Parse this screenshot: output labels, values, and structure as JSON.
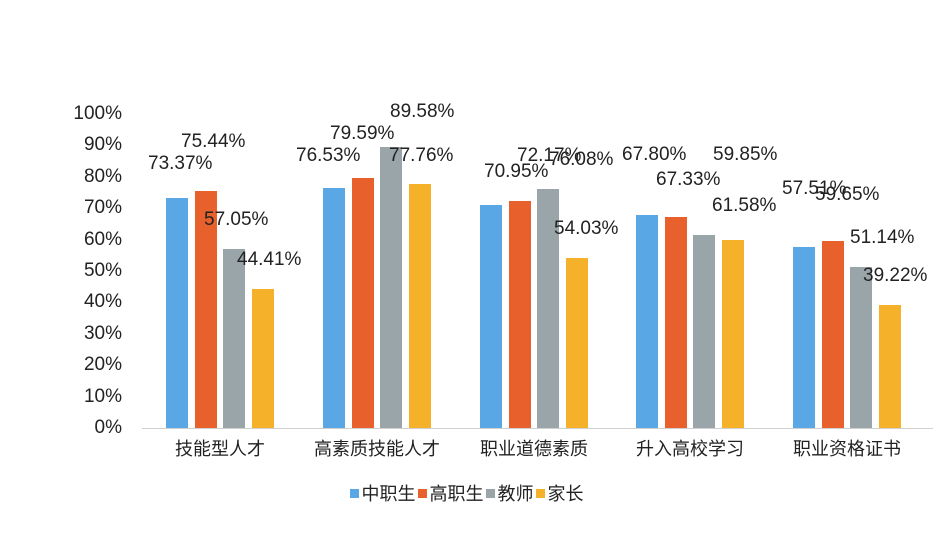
{
  "chart_data": {
    "type": "bar",
    "title": "",
    "xlabel": "",
    "ylabel": "",
    "ylim": [
      0,
      100
    ],
    "yticks": [
      "0%",
      "10%",
      "20%",
      "30%",
      "40%",
      "50%",
      "60%",
      "70%",
      "80%",
      "90%",
      "100%"
    ],
    "grid": false,
    "legend_position": "bottom",
    "categories": [
      "技能型人才",
      "高素质技能人才",
      "职业道德素质",
      "升入高校学习",
      "职业资格证书"
    ],
    "series": [
      {
        "name": "中职生",
        "color": "#5aa7e6",
        "values": [
          73.37,
          76.53,
          70.95,
          67.8,
          57.51
        ],
        "labels": [
          "73.37%",
          "76.53%",
          "70.95%",
          "67.80%",
          "57.51%"
        ]
      },
      {
        "name": "高职生",
        "color": "#e8602c",
        "values": [
          75.44,
          79.59,
          72.17,
          67.33,
          59.65
        ],
        "labels": [
          "75.44%",
          "79.59%",
          "72.17%",
          "67.33%",
          "59.65%"
        ]
      },
      {
        "name": "教师",
        "color": "#9aa5a9",
        "values": [
          57.05,
          89.58,
          76.08,
          61.58,
          51.14
        ],
        "labels": [
          "57.05%",
          "89.58%",
          "76.08%",
          "61.58%",
          "51.14%"
        ]
      },
      {
        "name": "家长",
        "color": "#f6b12b",
        "values": [
          44.41,
          77.76,
          54.03,
          59.85,
          39.22
        ],
        "labels": [
          "44.41%",
          "77.76%",
          "54.03%",
          "59.85%",
          "39.22%"
        ]
      }
    ]
  }
}
